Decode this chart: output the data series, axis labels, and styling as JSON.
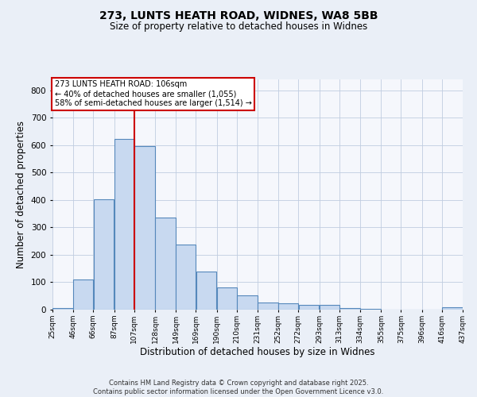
{
  "title": "273, LUNTS HEATH ROAD, WIDNES, WA8 5BB",
  "subtitle": "Size of property relative to detached houses in Widnes",
  "xlabel": "Distribution of detached houses by size in Widnes",
  "ylabel": "Number of detached properties",
  "bins": [
    25,
    46,
    66,
    87,
    107,
    128,
    149,
    169,
    190,
    210,
    231,
    252,
    272,
    293,
    313,
    334,
    355,
    375,
    396,
    416,
    437
  ],
  "counts": [
    7,
    110,
    403,
    622,
    598,
    335,
    238,
    139,
    80,
    52,
    25,
    22,
    16,
    18,
    6,
    3,
    0,
    0,
    0,
    10
  ],
  "bar_color": "#c8d9f0",
  "bar_edge_color": "#5588bb",
  "vline_x": 107,
  "vline_color": "#cc0000",
  "annotation_text": "273 LUNTS HEATH ROAD: 106sqm\n← 40% of detached houses are smaller (1,055)\n58% of semi-detached houses are larger (1,514) →",
  "annotation_box_color": "#ffffff",
  "annotation_box_edge_color": "#cc0000",
  "ylim": [
    0,
    840
  ],
  "yticks": [
    0,
    100,
    200,
    300,
    400,
    500,
    600,
    700,
    800
  ],
  "bg_color": "#eaeff7",
  "plot_bg_color": "#f5f7fc",
  "footer": "Contains HM Land Registry data © Crown copyright and database right 2025.\nContains public sector information licensed under the Open Government Licence v3.0.",
  "tick_labels": [
    "25sqm",
    "46sqm",
    "66sqm",
    "87sqm",
    "107sqm",
    "128sqm",
    "149sqm",
    "169sqm",
    "190sqm",
    "210sqm",
    "231sqm",
    "252sqm",
    "272sqm",
    "293sqm",
    "313sqm",
    "334sqm",
    "355sqm",
    "375sqm",
    "396sqm",
    "416sqm",
    "437sqm"
  ]
}
